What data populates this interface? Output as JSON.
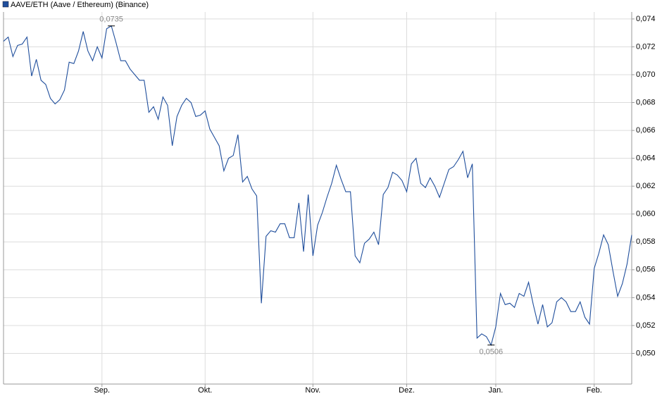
{
  "chart_data": {
    "type": "line",
    "categories": [
      null,
      null,
      null,
      null,
      null,
      null,
      null,
      null,
      null,
      null,
      null,
      null,
      null,
      null,
      null,
      null,
      null,
      null,
      null,
      null,
      null,
      "Sep.",
      null,
      null,
      null,
      null,
      null,
      null,
      null,
      null,
      null,
      null,
      null,
      null,
      null,
      null,
      null,
      null,
      null,
      null,
      null,
      null,
      null,
      "Okt.",
      null,
      null,
      null,
      null,
      null,
      null,
      null,
      null,
      null,
      null,
      null,
      null,
      null,
      null,
      null,
      null,
      null,
      null,
      null,
      null,
      null,
      null,
      "Nov.",
      null,
      null,
      null,
      null,
      null,
      null,
      null,
      null,
      null,
      null,
      null,
      null,
      null,
      null,
      null,
      null,
      null,
      null,
      null,
      "Dez.",
      null,
      null,
      null,
      null,
      null,
      null,
      null,
      null,
      null,
      null,
      null,
      null,
      null,
      null,
      null,
      null,
      null,
      null,
      "Jan.",
      null,
      null,
      null,
      null,
      null,
      null,
      null,
      null,
      null,
      null,
      null,
      null,
      null,
      null,
      null,
      null,
      null,
      null,
      null,
      null,
      "Feb.",
      null,
      null,
      null,
      null,
      null,
      null,
      null,
      null
    ],
    "series": [
      {
        "name": "AAVE/ETH (Aave / Ethereum) (Binance)",
        "color": "#1f4e9c",
        "values": [
          0.0724,
          0.0727,
          0.0713,
          0.0721,
          0.0722,
          0.0727,
          0.0699,
          0.0711,
          0.0696,
          0.0693,
          0.0683,
          0.0679,
          0.0682,
          0.0689,
          0.0709,
          0.0708,
          0.0717,
          0.0731,
          0.0717,
          0.071,
          0.072,
          0.0712,
          0.0733,
          0.0735,
          0.0723,
          0.071,
          0.071,
          0.0704,
          0.07,
          0.0696,
          0.0696,
          0.0673,
          0.0677,
          0.0668,
          0.0684,
          0.0678,
          0.0649,
          0.067,
          0.0678,
          0.0683,
          0.068,
          0.067,
          0.0671,
          0.0674,
          0.0661,
          0.0655,
          0.0649,
          0.0631,
          0.064,
          0.0642,
          0.0657,
          0.0623,
          0.0627,
          0.0618,
          0.0613,
          0.0536,
          0.0584,
          0.0588,
          0.0587,
          0.0593,
          0.0593,
          0.0583,
          0.0583,
          0.0608,
          0.0573,
          0.0614,
          0.057,
          0.0592,
          0.0601,
          0.0612,
          0.0622,
          0.0635,
          0.0625,
          0.0616,
          0.0616,
          0.057,
          0.0565,
          0.0579,
          0.0582,
          0.0587,
          0.0578,
          0.0614,
          0.0619,
          0.063,
          0.0628,
          0.0624,
          0.0616,
          0.0636,
          0.064,
          0.0622,
          0.0619,
          0.0626,
          0.062,
          0.0612,
          0.0622,
          0.0632,
          0.0634,
          0.0639,
          0.0645,
          0.0626,
          0.0636,
          0.0511,
          0.0514,
          0.0512,
          0.0506,
          0.0519,
          0.0543,
          0.0535,
          0.0536,
          0.0533,
          0.0543,
          0.0541,
          0.0551,
          0.0535,
          0.0521,
          0.0535,
          0.0519,
          0.0522,
          0.0537,
          0.054,
          0.0537,
          0.053,
          0.053,
          0.0537,
          0.0526,
          0.0521,
          0.0561,
          0.0572,
          0.0585,
          0.0578,
          0.0559,
          0.0541,
          0.055,
          0.0564,
          0.0585
        ],
        "value_labels": [
          null,
          null,
          null,
          null,
          null,
          null,
          null,
          null,
          null,
          null,
          null,
          null,
          null,
          null,
          null,
          null,
          null,
          null,
          null,
          null,
          null,
          null,
          null,
          "0,0735",
          null,
          null,
          null,
          null,
          null,
          null,
          null,
          null,
          null,
          null,
          null,
          null,
          null,
          null,
          null,
          null,
          null,
          null,
          null,
          null,
          null,
          null,
          null,
          null,
          null,
          null,
          null,
          null,
          null,
          null,
          null,
          null,
          null,
          null,
          null,
          null,
          null,
          null,
          null,
          null,
          null,
          null,
          null,
          null,
          null,
          null,
          null,
          null,
          null,
          null,
          null,
          null,
          null,
          null,
          null,
          null,
          null,
          null,
          null,
          null,
          null,
          null,
          null,
          null,
          null,
          null,
          null,
          null,
          null,
          null,
          null,
          null,
          null,
          null,
          null,
          null,
          null,
          null,
          null,
          null,
          "0,0506",
          null,
          null,
          null,
          null,
          null,
          null,
          null,
          null,
          null,
          null,
          null,
          null,
          null,
          null,
          null,
          null,
          null,
          null,
          null,
          null,
          null,
          null,
          null,
          null,
          null,
          null,
          null,
          null,
          null,
          null
        ]
      }
    ],
    "ylim": [
      0.0478,
      0.0745
    ],
    "yticks": [
      {
        "value": 0.05,
        "label": "0,050"
      },
      {
        "value": 0.052,
        "label": "0,052"
      },
      {
        "value": 0.054,
        "label": "0,054"
      },
      {
        "value": 0.056,
        "label": "0,056"
      },
      {
        "value": 0.058,
        "label": "0,058"
      },
      {
        "value": 0.06,
        "label": "0,060"
      },
      {
        "value": 0.062,
        "label": "0,062"
      },
      {
        "value": 0.064,
        "label": "0,064"
      },
      {
        "value": 0.066,
        "label": "0,066"
      },
      {
        "value": 0.068,
        "label": "0,068"
      },
      {
        "value": 0.07,
        "label": "0,070"
      },
      {
        "value": 0.072,
        "label": "0,072"
      },
      {
        "value": 0.074,
        "label": "0,074"
      }
    ],
    "grid": true,
    "legend": "top-left"
  }
}
